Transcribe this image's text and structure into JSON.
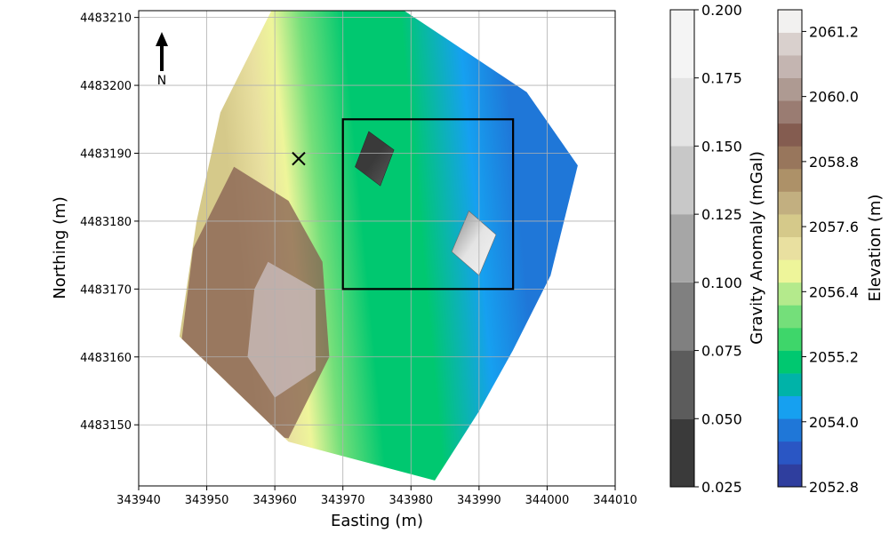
{
  "chart_data": [
    {
      "type": "contour-map",
      "xlabel": "Easting (m)",
      "ylabel": "Northing (m)",
      "xlim": [
        343940,
        344010
      ],
      "ylim": [
        4483141,
        4483211
      ],
      "x_ticks": [
        343940,
        343950,
        343960,
        343970,
        343980,
        343990,
        344000,
        344010
      ],
      "y_ticks": [
        4483150,
        4483160,
        4483170,
        4483180,
        4483190,
        4483200,
        4483210
      ],
      "x_tick_labels": [
        "343940",
        "343950",
        "343960",
        "343970",
        "343980",
        "343990",
        "344000",
        "344010"
      ],
      "y_tick_labels": [
        "4483150",
        "4483160",
        "4483170",
        "4483180",
        "4483190",
        "4483200",
        "4483210"
      ],
      "grid": true,
      "north_arrow_label": "N",
      "marker": {
        "symbol": "x",
        "x": 343963.5,
        "y": 4483189.2
      },
      "study_area_box": {
        "x": [
          343970,
          343995
        ],
        "y": [
          4483170,
          4483195
        ]
      },
      "survey_outline": [
        [
          343959.5,
          4483211
        ],
        [
          343979,
          4483211
        ],
        [
          343997,
          4483199
        ],
        [
          344004.5,
          4483188.2
        ],
        [
          344000.5,
          4483172
        ],
        [
          343995,
          4483161
        ],
        [
          343990,
          4483152
        ],
        [
          343983.5,
          4483141.8
        ],
        [
          343962,
          4483147.5
        ],
        [
          343946,
          4483163
        ],
        [
          343948.5,
          4483180
        ],
        [
          343952,
          4483196
        ]
      ],
      "elevation_gradient_stops": [
        {
          "at": 0.0,
          "value": 2057.6
        },
        {
          "at": 0.12,
          "value": 2057.2
        },
        {
          "at": 0.2,
          "value": 2056.6
        },
        {
          "at": 0.3,
          "value": 2055.8
        },
        {
          "at": 0.45,
          "value": 2055.2
        },
        {
          "at": 0.65,
          "value": 2054.9
        },
        {
          "at": 0.85,
          "value": 2054.2
        },
        {
          "at": 1.0,
          "value": 2053.9
        }
      ],
      "high_elevation_zone": {
        "outer": [
          [
            343954,
            4483188
          ],
          [
            343962,
            4483183
          ],
          [
            343967,
            4483174
          ],
          [
            343968,
            4483160
          ],
          [
            343962,
            4483148
          ],
          [
            343950,
            4483150
          ],
          [
            343946,
            4483160
          ],
          [
            343948,
            4483176
          ]
        ],
        "inner": [
          [
            343959,
            4483174
          ],
          [
            343966,
            4483170
          ],
          [
            343966,
            4483158
          ],
          [
            343960,
            4483154
          ],
          [
            343956,
            4483160
          ],
          [
            343957,
            4483170
          ]
        ],
        "outer_value": 2059.2,
        "inner_value": 2060.4
      },
      "gravity_patches": [
        {
          "corners": [
            [
              343973.8,
              4483193.2
            ],
            [
              343977.5,
              4483190.5
            ],
            [
              343975.5,
              4483185.2
            ],
            [
              343971.8,
              4483188.0
            ]
          ],
          "min": 0.025,
          "max": 0.06
        },
        {
          "corners": [
            [
              343988.5,
              4483181.5
            ],
            [
              343992.5,
              4483178.0
            ],
            [
              343990.0,
              4483172.0
            ],
            [
              343986.0,
              4483175.5
            ]
          ],
          "min": 0.1,
          "max": 0.2
        }
      ]
    },
    {
      "type": "colorbar",
      "label": "Gravity Anomaly (mGal)",
      "levels": [
        0.025,
        0.05,
        0.075,
        0.1,
        0.125,
        0.15,
        0.175,
        0.2
      ],
      "tick_labels": [
        "0.025",
        "0.050",
        "0.075",
        "0.100",
        "0.125",
        "0.150",
        "0.175",
        "0.200"
      ],
      "colors": [
        "#3a3a3a",
        "#5c5c5c",
        "#808080",
        "#a6a6a6",
        "#c8c8c8",
        "#e4e4e4",
        "#f4f4f4"
      ]
    },
    {
      "type": "colorbar",
      "label": "Elevation (m)",
      "min": 2052.8,
      "max": 2061.6,
      "ticks": [
        2052.8,
        2054.0,
        2055.2,
        2056.4,
        2057.6,
        2058.8,
        2060.0,
        2061.2
      ],
      "tick_labels": [
        "2052.8",
        "2054.0",
        "2055.2",
        "2056.4",
        "2057.6",
        "2058.8",
        "2060.0",
        "2061.2"
      ],
      "colors": [
        "#2f3e9e",
        "#2a56c4",
        "#1f77d8",
        "#16a0f0",
        "#00b3a8",
        "#00c870",
        "#3ed66a",
        "#74df7a",
        "#b4ea8c",
        "#eef59a",
        "#e9e0a0",
        "#d5c98a",
        "#c2af80",
        "#ad9168",
        "#98765c",
        "#845c50",
        "#9a7c72",
        "#ae9a92",
        "#c4b5b1",
        "#d9d0cd",
        "#f2f1f0"
      ]
    }
  ]
}
